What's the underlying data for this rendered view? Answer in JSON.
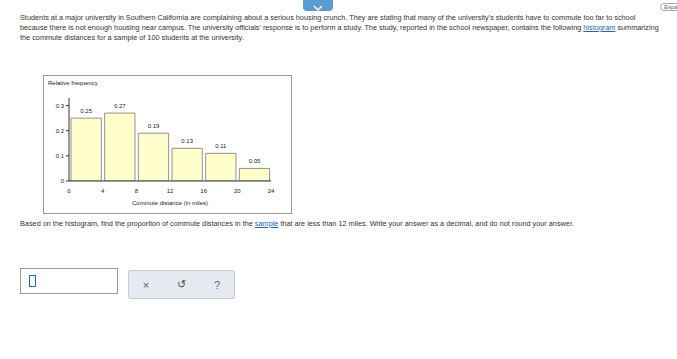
{
  "page": {
    "corner_text": "Espa",
    "intro": {
      "before": "Students at a major university in Southern California are complaining about a serious housing crunch. They are stating that many of the university's students have to commute too far to school because there is not enough housing near campus. The university officials' response is to perform a study. The study, reported in the school newspaper, contains the following ",
      "link": "histogram",
      "after": " summarizing the commute distances for a sample of 100 students at the university."
    },
    "question": {
      "before": "Based on the histogram, find the proportion of commute distances in the ",
      "link": "sample",
      "after": " that are less than 12 miles. Write your answer as a decimal, and do not round your answer."
    },
    "buttons": [
      "×",
      "↺",
      "?"
    ]
  },
  "chart_data": {
    "type": "histogram",
    "y_label": "Relative frequency",
    "x_label": "Commute distance (in miles)",
    "bins": [
      0,
      4,
      8,
      12,
      16,
      20,
      24
    ],
    "values": [
      0.25,
      0.27,
      0.19,
      0.13,
      0.11,
      0.05
    ],
    "color": "#ffffcc",
    "xlim": [
      0,
      24
    ],
    "xticks": [
      0,
      4,
      8,
      12,
      16,
      20,
      24
    ],
    "ylim": [
      0,
      0.33
    ],
    "yticks": [
      0,
      0.1,
      0.2,
      0.3
    ],
    "data_labels": true,
    "grid": false
  }
}
